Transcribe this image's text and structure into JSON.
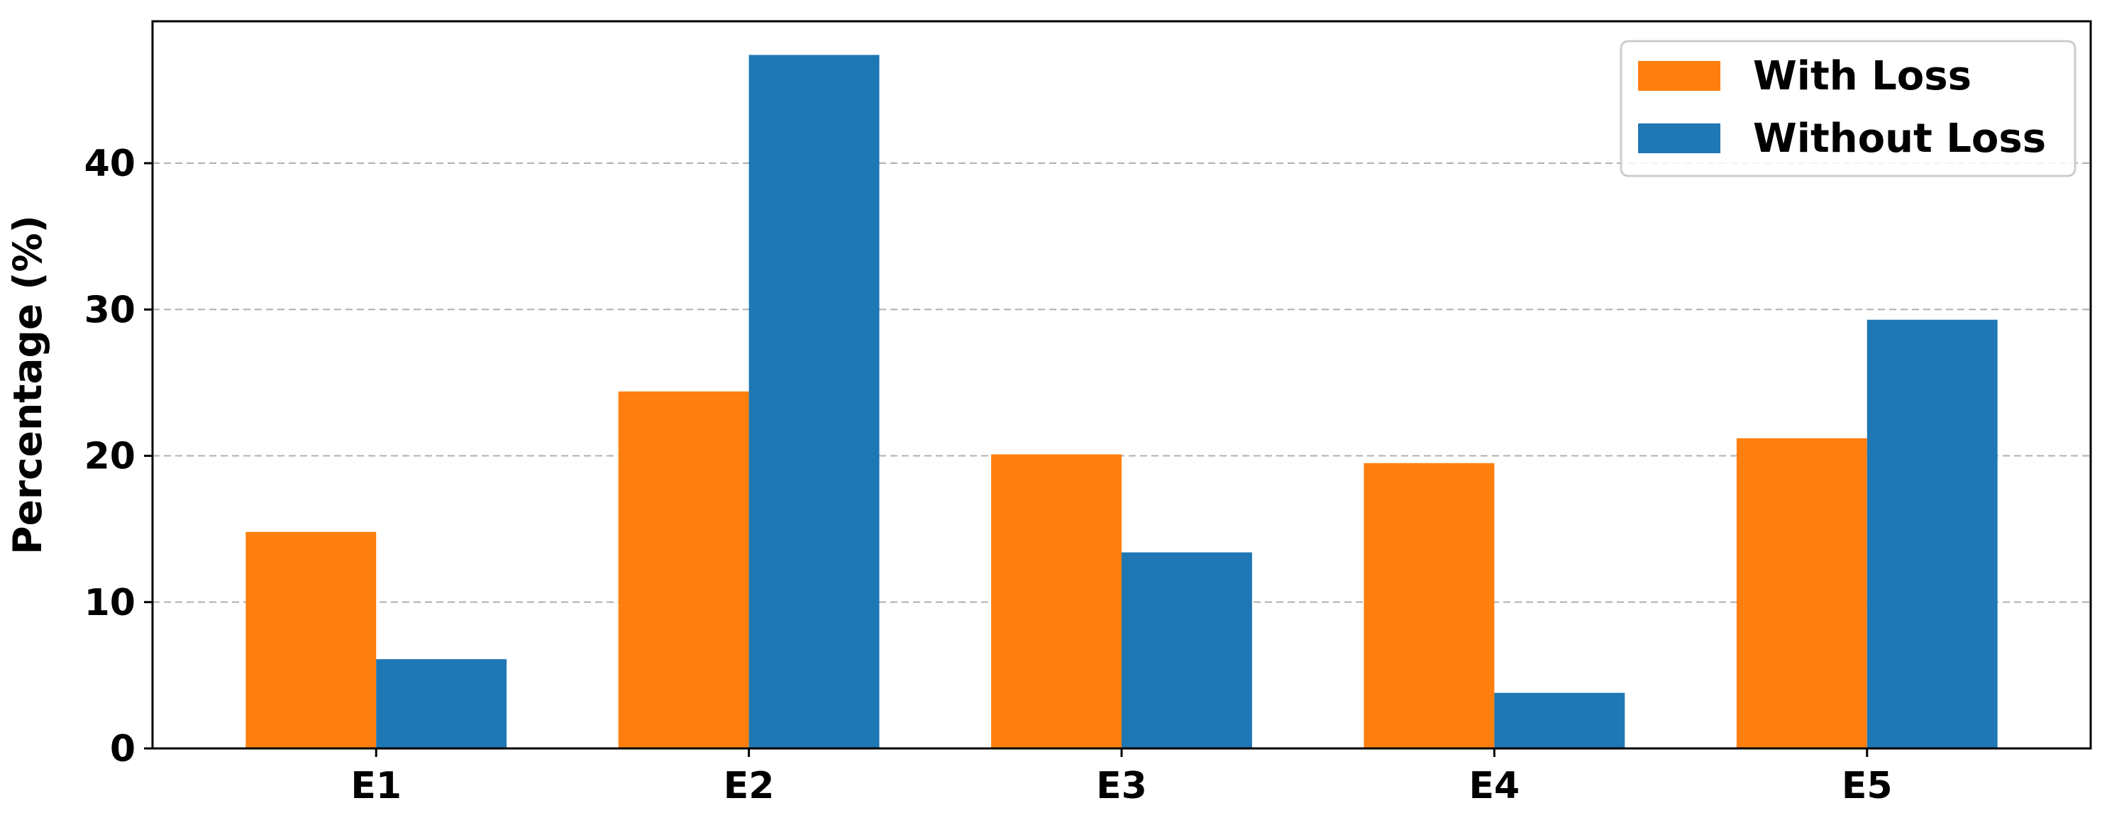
{
  "chart_data": {
    "type": "bar",
    "title": "",
    "xlabel": "",
    "ylabel": "Percentage (%)",
    "categories": [
      "E1",
      "E2",
      "E3",
      "E4",
      "E5"
    ],
    "series": [
      {
        "name": "With Loss",
        "color": "#ff7f0e",
        "values": [
          14.8,
          24.4,
          20.1,
          19.5,
          21.2
        ]
      },
      {
        "name": "Without Loss",
        "color": "#1f77b4",
        "values": [
          6.1,
          47.4,
          13.4,
          3.8,
          29.3
        ]
      }
    ],
    "ylim": [
      0,
      49.7
    ],
    "yticks": [
      0,
      10,
      20,
      30,
      40
    ],
    "grid": "horizontal-dashed",
    "legend_position": "top-right"
  }
}
